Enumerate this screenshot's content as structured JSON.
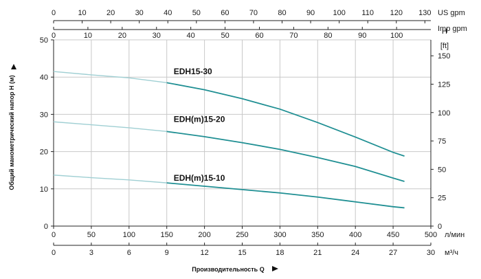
{
  "chart_data": {
    "type": "line",
    "series": [
      {
        "name": "EDH15-30",
        "label_at": [
          150,
          41.5
        ],
        "points": [
          [
            0,
            41.5
          ],
          [
            50,
            40.6
          ],
          [
            100,
            39.8
          ],
          [
            150,
            38.5
          ],
          [
            200,
            36.6
          ],
          [
            250,
            34.2
          ],
          [
            300,
            31.4
          ],
          [
            350,
            27.8
          ],
          [
            400,
            23.9
          ],
          [
            450,
            19.8
          ],
          [
            465,
            18.8
          ]
        ]
      },
      {
        "name": "EDH(m)15-20",
        "label_at": [
          150,
          28.7
        ],
        "points": [
          [
            0,
            28.0
          ],
          [
            50,
            27.2
          ],
          [
            100,
            26.4
          ],
          [
            150,
            25.4
          ],
          [
            200,
            24.0
          ],
          [
            250,
            22.4
          ],
          [
            300,
            20.6
          ],
          [
            350,
            18.4
          ],
          [
            400,
            16.0
          ],
          [
            450,
            12.9
          ],
          [
            465,
            12.0
          ]
        ]
      },
      {
        "name": "EDH(m)15-10",
        "label_at": [
          150,
          12.9
        ],
        "points": [
          [
            0,
            13.7
          ],
          [
            50,
            13.0
          ],
          [
            100,
            12.4
          ],
          [
            150,
            11.6
          ],
          [
            200,
            10.7
          ],
          [
            250,
            9.8
          ],
          [
            300,
            8.9
          ],
          [
            350,
            7.8
          ],
          [
            400,
            6.5
          ],
          [
            450,
            5.2
          ],
          [
            465,
            4.9
          ]
        ]
      }
    ],
    "xlim": [
      0,
      500
    ],
    "ylim": [
      0,
      50
    ],
    "x_ticks_lmin": [
      "0",
      "50",
      "100",
      "150",
      "200",
      "250",
      "300",
      "350",
      "400",
      "450",
      "500"
    ],
    "x_unit_lmin": "л/мин",
    "x_ticks_m3h": [
      "0",
      "3",
      "6",
      "9",
      "12",
      "15",
      "18",
      "21",
      "24",
      "27",
      "30"
    ],
    "x_unit_m3h": "м³/ч",
    "x_ticks_usgpm": [
      "0",
      "10",
      "20",
      "30",
      "40",
      "50",
      "60",
      "70",
      "80",
      "90",
      "100",
      "110",
      "120",
      "130"
    ],
    "x_unit_usgpm": "US gpm",
    "x_ticks_impgpm": [
      "0",
      "10",
      "20",
      "30",
      "40",
      "50",
      "60",
      "70",
      "80",
      "90",
      "100"
    ],
    "x_unit_impgpm": "Imp gpm",
    "y_ticks_m": [
      "0",
      "10",
      "20",
      "30",
      "40",
      "50"
    ],
    "y_ticks_ft": [
      "0",
      "25",
      "50",
      "75",
      "100",
      "125",
      "150"
    ],
    "y_unit_ft_h": "H",
    "y_unit_ft": "[ft]",
    "ylabel": "Общий манометрический напор H (м)",
    "xlabel": "Производительность Q",
    "grid": true,
    "colors": {
      "curve": "#1f8f93",
      "grid": "#c8c8c8",
      "axis": "#222222"
    }
  }
}
